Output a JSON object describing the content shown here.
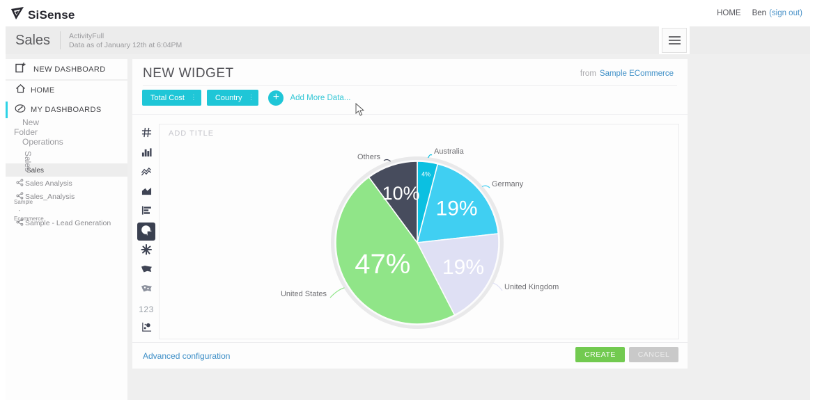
{
  "topbar": {
    "logo": "SiSense",
    "home_link": "HOME",
    "user": "Ben",
    "signout": "(sign out)"
  },
  "dashboard_bar": {
    "title": "Sales",
    "subtitle_line1": "ActivityFull",
    "subtitle_line2": "Data as of January 12th at 6:04PM"
  },
  "sidebar": {
    "new_dashboard_label": "NEW DASHBOARD",
    "items": [
      {
        "label": "HOME",
        "icon": "home",
        "type": "main",
        "active": false
      },
      {
        "label": "MY DASHBOARDS",
        "icon": "dashboards",
        "type": "main",
        "active": true
      },
      {
        "label": "New Folder",
        "icon": "chevron-right",
        "type": "folder"
      },
      {
        "label": "Operations",
        "icon": "chevron-right",
        "type": "folder"
      },
      {
        "label": "Sales",
        "icon": "chevron-down",
        "type": "folder"
      },
      {
        "label": "Sales",
        "icon": "bullet",
        "type": "dashboard",
        "selected": true,
        "indent": true
      },
      {
        "label": "Sales Analysis",
        "icon": "share",
        "type": "dashboard"
      },
      {
        "label": "Sales_Analysis",
        "icon": "share",
        "type": "dashboard"
      },
      {
        "label": "Sample - Ecommerce",
        "icon": "circle",
        "type": "dashboard"
      },
      {
        "label": "Sample - Lead Generation",
        "icon": "share",
        "type": "dashboard"
      }
    ]
  },
  "editor": {
    "title": "NEW WIDGET",
    "from_label": "from",
    "source": "Sample ECommerce",
    "fields": [
      {
        "label": "Total Cost"
      },
      {
        "label": "Country"
      }
    ],
    "add_more_label": "Add More Data...",
    "chart_types": [
      {
        "name": "pivot"
      },
      {
        "name": "column"
      },
      {
        "name": "line"
      },
      {
        "name": "area"
      },
      {
        "name": "bar"
      },
      {
        "name": "pie",
        "selected": true
      },
      {
        "name": "polar"
      },
      {
        "name": "map"
      },
      {
        "name": "scatter-map"
      },
      {
        "name": "indicator",
        "label": "123"
      },
      {
        "name": "scatter"
      }
    ],
    "add_title_placeholder": "ADD TITLE",
    "advanced_link": "Advanced configuration",
    "create_button": "CREATE",
    "cancel_button": "CANCEL"
  },
  "chart_data": {
    "type": "pie",
    "title": "",
    "start_angle_deg": 0,
    "direction": "clockwise",
    "legend": "off",
    "labels": "category names outside with connector lines, percent values inside slices",
    "series": [
      {
        "name": "Australia",
        "value": 4,
        "pct_label": "4%",
        "color": "#0bc0e1"
      },
      {
        "name": "Germany",
        "value": 19,
        "pct_label": "19%",
        "color": "#40cff2"
      },
      {
        "name": "United Kingdom",
        "value": 19,
        "pct_label": "19%",
        "color": "#dfe0f4"
      },
      {
        "name": "United States",
        "value": 47,
        "pct_label": "47%",
        "color": "#90e588"
      },
      {
        "name": "Others",
        "value": 10,
        "pct_label": "10%",
        "color": "#474c5d"
      }
    ]
  },
  "colors": {
    "accent_cyan": "#1fc6d7",
    "active_marker_cyan": "#2ed3e6",
    "link_blue": "#3e8fc7",
    "create_green": "#72ca50",
    "cancel_gray": "#c9c9c9",
    "bar_gray": "#ececec",
    "page_gray": "#efefef"
  }
}
